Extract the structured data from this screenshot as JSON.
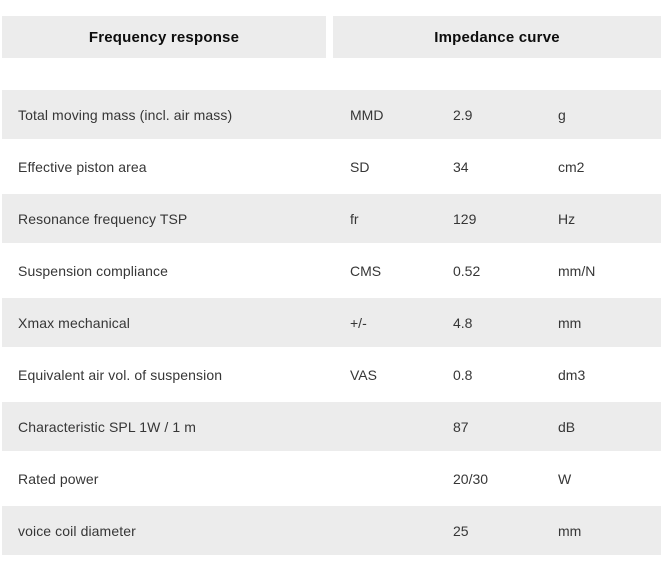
{
  "header": {
    "tabs": [
      {
        "label": "Frequency response"
      },
      {
        "label": "Impedance curve"
      }
    ]
  },
  "table": {
    "rows": [
      {
        "label": "Total moving mass (incl. air mass)",
        "symbol": "MMD",
        "value": "2.9",
        "unit": "g"
      },
      {
        "label": "Effective piston area",
        "symbol": "SD",
        "value": "34",
        "unit": "cm2"
      },
      {
        "label": "Resonance frequency TSP",
        "symbol": "fr",
        "value": "129",
        "unit": "Hz"
      },
      {
        "label": "Suspension compliance",
        "symbol": "CMS",
        "value": "0.52",
        "unit": "mm/N"
      },
      {
        "label": "Xmax mechanical",
        "symbol": "+/-",
        "value": "4.8",
        "unit": "mm"
      },
      {
        "label": "Equivalent air vol. of suspension",
        "symbol": "VAS",
        "value": "0.8",
        "unit": "dm3"
      },
      {
        "label": "Characteristic SPL 1W / 1 m",
        "symbol": "",
        "value": "87",
        "unit": "dB"
      },
      {
        "label": "Rated power",
        "symbol": "",
        "value": "20/30",
        "unit": "W"
      },
      {
        "label": "voice coil diameter",
        "symbol": "",
        "value": "25",
        "unit": "mm"
      }
    ]
  },
  "colors": {
    "row_shaded_bg": "#ececec",
    "header_bg": "#ececec",
    "text": "#363636",
    "header_text": "#0d0d0d"
  }
}
